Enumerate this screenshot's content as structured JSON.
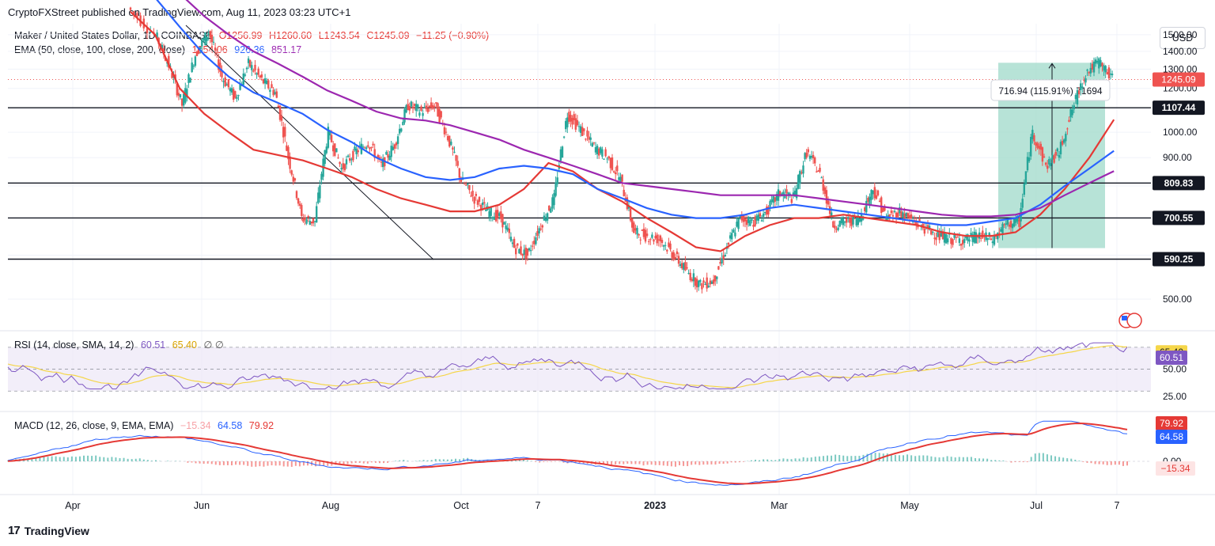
{
  "header": {
    "published": "CryptoFXStreet published on TradingView.com, Aug 11, 2023 03:23 UTC+1"
  },
  "legend": {
    "symbol": "Maker / United States Dollar, 1D, COINBASE",
    "o": "O1256.99",
    "h": "H1260.60",
    "l": "L1243.54",
    "c": "C1245.09",
    "chg": "−11.25 (−0.90%)",
    "ema_label": "EMA (50, close, 100, close, 200, close)",
    "ema50": "1054.06",
    "ema100": "926.36",
    "ema200": "851.17"
  },
  "rsi_legend": {
    "label": "RSI (14, close, SMA, 14, 2)",
    "rsi": "60.51",
    "sma": "65.40",
    "extra": "∅  ∅"
  },
  "macd_legend": {
    "label": "MACD (12, 26, close, 9, EMA, EMA)",
    "hist": "−15.34",
    "macd": "64.58",
    "signal": "79.92"
  },
  "currency_button": "USD",
  "footer": {
    "brand": "TradingView"
  },
  "colors": {
    "up": "#26a69a",
    "down": "#ef5350",
    "ema50": "#e53935",
    "ema100": "#2962ff",
    "ema200": "#9c27b0",
    "rsi": "#7e57c2",
    "rsi_sma": "#f5d64a",
    "macd_signal": "#e53935",
    "macd_line": "#2962ff",
    "measure_box": "#a5dccd"
  },
  "chart_data": {
    "type": "candlestick",
    "title": "Maker / United States Dollar, 1D, COINBASE",
    "price_axis": {
      "ticks": [
        500,
        600,
        700,
        800,
        900,
        1000,
        1100,
        1200,
        1300,
        1400,
        1500
      ],
      "tick_labels": [
        "500.00",
        "",
        "",
        "",
        "900.00",
        "1000.00",
        "",
        "1200.00",
        "1300.00",
        "1400.00",
        "1500.00"
      ],
      "ylim": [
        450,
        1570
      ],
      "scale": "log"
    },
    "x_labels": [
      "Apr",
      "Jun",
      "Aug",
      "Oct",
      "7",
      "2023",
      "Mar",
      "May",
      "Jul",
      "7"
    ],
    "last_price": {
      "value": 1245.09,
      "label": "1245.09"
    },
    "horizontal_levels": [
      {
        "value": 1107.44,
        "label": "1107.44"
      },
      {
        "value": 809.83,
        "label": "809.83"
      },
      {
        "value": 700.55,
        "label": "700.55"
      },
      {
        "value": 590.25,
        "label": "590.25"
      }
    ],
    "measure": {
      "label": "716.94 (115.91%) 71694",
      "from": 618,
      "to": 1335
    },
    "price_series": [
      {
        "t": 0,
        "v": 1680
      },
      {
        "t": 4,
        "v": 1500
      },
      {
        "t": 6,
        "v": 1320
      },
      {
        "t": 8,
        "v": 1120
      },
      {
        "t": 10,
        "v": 1380
      },
      {
        "t": 12,
        "v": 1520
      },
      {
        "t": 14,
        "v": 1260
      },
      {
        "t": 16,
        "v": 1150
      },
      {
        "t": 18,
        "v": 1330
      },
      {
        "t": 20,
        "v": 1240
      },
      {
        "t": 22,
        "v": 1180
      },
      {
        "t": 24,
        "v": 900
      },
      {
        "t": 26,
        "v": 700
      },
      {
        "t": 28,
        "v": 690
      },
      {
        "t": 30,
        "v": 1000
      },
      {
        "t": 32,
        "v": 860
      },
      {
        "t": 34,
        "v": 920
      },
      {
        "t": 36,
        "v": 960
      },
      {
        "t": 38,
        "v": 870
      },
      {
        "t": 40,
        "v": 950
      },
      {
        "t": 42,
        "v": 1120
      },
      {
        "t": 44,
        "v": 1090
      },
      {
        "t": 46,
        "v": 1120
      },
      {
        "t": 48,
        "v": 980
      },
      {
        "t": 50,
        "v": 820
      },
      {
        "t": 52,
        "v": 760
      },
      {
        "t": 54,
        "v": 720
      },
      {
        "t": 56,
        "v": 700
      },
      {
        "t": 58,
        "v": 620
      },
      {
        "t": 60,
        "v": 600
      },
      {
        "t": 62,
        "v": 680
      },
      {
        "t": 64,
        "v": 760
      },
      {
        "t": 66,
        "v": 1080
      },
      {
        "t": 68,
        "v": 1010
      },
      {
        "t": 70,
        "v": 940
      },
      {
        "t": 72,
        "v": 900
      },
      {
        "t": 74,
        "v": 820
      },
      {
        "t": 76,
        "v": 660
      },
      {
        "t": 78,
        "v": 650
      },
      {
        "t": 80,
        "v": 640
      },
      {
        "t": 82,
        "v": 600
      },
      {
        "t": 84,
        "v": 560
      },
      {
        "t": 86,
        "v": 530
      },
      {
        "t": 88,
        "v": 540
      },
      {
        "t": 90,
        "v": 620
      },
      {
        "t": 92,
        "v": 700
      },
      {
        "t": 94,
        "v": 690
      },
      {
        "t": 96,
        "v": 720
      },
      {
        "t": 98,
        "v": 780
      },
      {
        "t": 100,
        "v": 760
      },
      {
        "t": 102,
        "v": 920
      },
      {
        "t": 104,
        "v": 840
      },
      {
        "t": 106,
        "v": 680
      },
      {
        "t": 108,
        "v": 690
      },
      {
        "t": 110,
        "v": 700
      },
      {
        "t": 112,
        "v": 790
      },
      {
        "t": 114,
        "v": 700
      },
      {
        "t": 116,
        "v": 720
      },
      {
        "t": 118,
        "v": 690
      },
      {
        "t": 120,
        "v": 670
      },
      {
        "t": 122,
        "v": 650
      },
      {
        "t": 124,
        "v": 640
      },
      {
        "t": 126,
        "v": 640
      },
      {
        "t": 128,
        "v": 650
      },
      {
        "t": 130,
        "v": 640
      },
      {
        "t": 132,
        "v": 680
      },
      {
        "t": 134,
        "v": 690
      },
      {
        "t": 136,
        "v": 1000
      },
      {
        "t": 138,
        "v": 870
      },
      {
        "t": 140,
        "v": 920
      },
      {
        "t": 142,
        "v": 1100
      },
      {
        "t": 144,
        "v": 1280
      },
      {
        "t": 146,
        "v": 1340
      },
      {
        "t": 148,
        "v": 1245
      }
    ],
    "ema_lines": [
      {
        "name": "EMA 50",
        "values": [
          1650,
          1500,
          1200,
          1080,
          1000,
          930,
          910,
          890,
          860,
          830,
          790,
          760,
          740,
          720,
          720,
          740,
          790,
          880,
          850,
          790,
          750,
          700,
          660,
          620,
          610,
          650,
          680,
          700,
          700,
          710,
          700,
          690,
          680,
          660,
          650,
          650,
          660,
          710,
          790,
          900,
          1054
        ]
      },
      {
        "name": "EMA 100",
        "values": [
          1900,
          1750,
          1550,
          1380,
          1260,
          1180,
          1130,
          1080,
          1010,
          960,
          900,
          860,
          830,
          820,
          830,
          860,
          870,
          860,
          840,
          790,
          760,
          730,
          710,
          700,
          700,
          710,
          730,
          740,
          730,
          720,
          710,
          700,
          690,
          680,
          680,
          690,
          700,
          740,
          800,
          860,
          926
        ]
      },
      {
        "name": "EMA 200",
        "values": [
          1900,
          1850,
          1780,
          1620,
          1500,
          1400,
          1330,
          1260,
          1190,
          1140,
          1090,
          1060,
          1050,
          1030,
          1000,
          970,
          930,
          900,
          870,
          840,
          810,
          800,
          790,
          780,
          770,
          770,
          770,
          770,
          760,
          750,
          740,
          730,
          720,
          710,
          705,
          705,
          710,
          730,
          770,
          810,
          851
        ]
      }
    ]
  },
  "rsi": {
    "axis_labels": [
      "65.40",
      "60.51",
      "50.00",
      "25.00"
    ],
    "band": [
      30,
      70
    ]
  },
  "macd": {
    "axis_labels": [
      "79.92",
      "64.58",
      "0.00",
      "−15.34"
    ]
  }
}
